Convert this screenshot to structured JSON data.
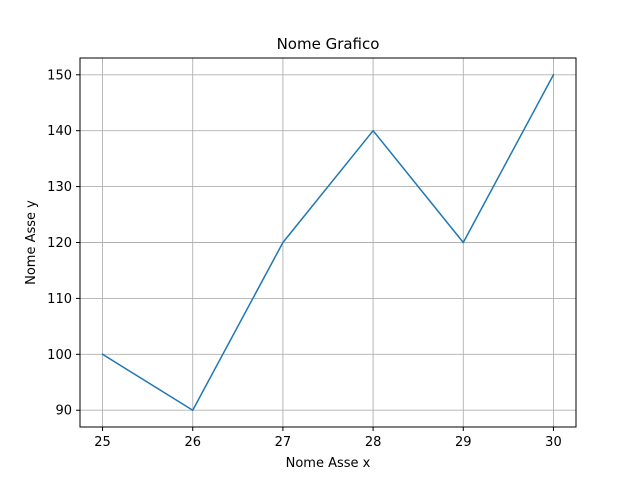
{
  "chart_data": {
    "type": "line",
    "title": "Nome Grafico",
    "xlabel": "Nome Asse x",
    "ylabel": "Nome Asse y",
    "xlim": [
      24.75,
      30.25
    ],
    "ylim": [
      87,
      153
    ],
    "xticks": [
      25,
      26,
      27,
      28,
      29,
      30
    ],
    "yticks": [
      90,
      100,
      110,
      120,
      130,
      140,
      150
    ],
    "grid": true,
    "colors": {
      "line": "#1f77b4"
    },
    "series": [
      {
        "x": [
          25,
          26,
          27,
          28,
          29,
          30
        ],
        "values": [
          100,
          90,
          120,
          140,
          120,
          150
        ]
      }
    ]
  }
}
